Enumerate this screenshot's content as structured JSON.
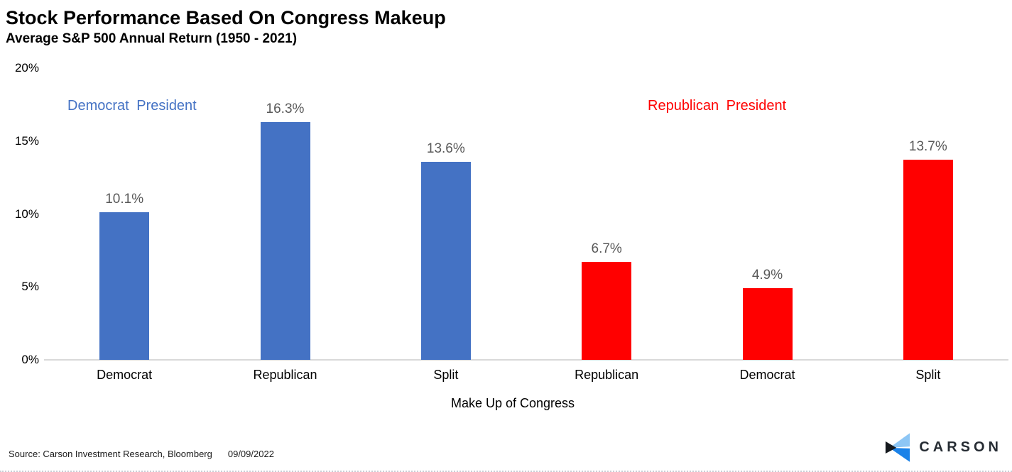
{
  "header": {
    "title": "Stock Performance Based On Congress Makeup",
    "subtitle": "Average S&P 500 Annual Return (1950 - 2021)"
  },
  "chart_data": {
    "type": "bar",
    "title": "Stock Performance Based On Congress Makeup",
    "subtitle": "Average S&P 500 Annual Return (1950 - 2021)",
    "xlabel": "Make Up of Congress",
    "ylabel": "",
    "ylim": [
      0,
      20
    ],
    "yticks": [
      0,
      5,
      10,
      15,
      20
    ],
    "ytick_labels": [
      "0%",
      "5%",
      "10%",
      "15%",
      "20%"
    ],
    "grid": false,
    "categories": [
      "Democrat",
      "Republican",
      "Split",
      "Republican",
      "Democrat",
      "Split"
    ],
    "values": [
      10.1,
      16.3,
      13.6,
      6.7,
      4.9,
      13.7
    ],
    "value_labels": [
      "10.1%",
      "16.3%",
      "13.6%",
      "6.7%",
      "4.9%",
      "13.7%"
    ],
    "bar_colors": [
      "#4472C4",
      "#4472C4",
      "#4472C4",
      "#FF0000",
      "#FF0000",
      "#FF0000"
    ],
    "groups": [
      {
        "label": "Democrat President",
        "color": "#4472C4"
      },
      {
        "label": "Republican President",
        "color": "#FF0000"
      }
    ],
    "legend_position": "inside-top",
    "baseline_color": "#D9D9D9",
    "value_label_color": "#595959"
  },
  "footer": {
    "source": "Source: Carson Investment Research, Bloomberg",
    "date": "09/09/2022",
    "logo_text": "CARSON",
    "logo_colors": {
      "light": "#8DC6F5",
      "blue": "#1B82E8",
      "dark": "#15191E"
    }
  }
}
